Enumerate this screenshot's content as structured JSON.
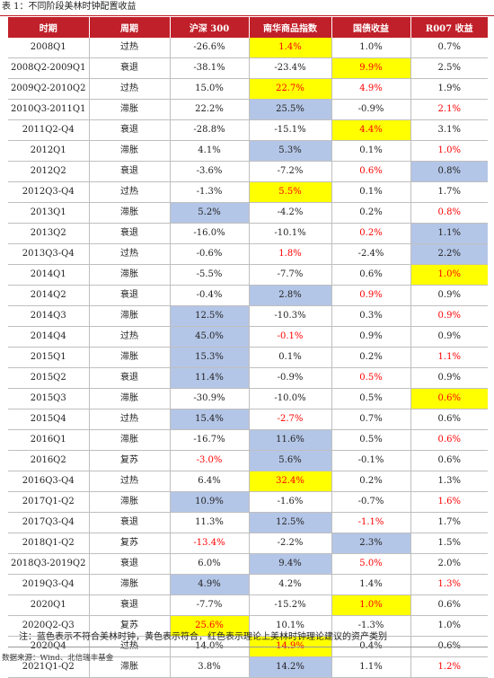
{
  "caption": "表 1：不同阶段美林时钟配置收益",
  "columns": [
    "时期",
    "周期",
    "沪深 300",
    "南华商品指数",
    "国债收益",
    "R007 收益"
  ],
  "rows": [
    {
      "period": "2008Q1",
      "cycle": "过热",
      "hs300": "-26.6%",
      "nanhua": "1.4%",
      "bond": "1.0%",
      "r007": "0.7%",
      "styles": [
        "",
        "yellow-red",
        "",
        ""
      ]
    },
    {
      "period": "2008Q2-2009Q1",
      "cycle": "衰退",
      "hs300": "-38.1%",
      "nanhua": "-23.4%",
      "bond": "9.9%",
      "r007": "2.5%",
      "styles": [
        "",
        "",
        "yellow-red",
        ""
      ]
    },
    {
      "period": "2009Q2-2010Q2",
      "cycle": "过热",
      "hs300": "15.0%",
      "nanhua": "22.7%",
      "bond": "4.9%",
      "r007": "1.9%",
      "styles": [
        "",
        "yellow-red",
        "red",
        ""
      ]
    },
    {
      "period": "2010Q3-2011Q1",
      "cycle": "滞胀",
      "hs300": "22.2%",
      "nanhua": "25.5%",
      "bond": "-0.9%",
      "r007": "2.1%",
      "styles": [
        "",
        "blue",
        "",
        "red"
      ]
    },
    {
      "period": "2011Q2-Q4",
      "cycle": "衰退",
      "hs300": "-28.8%",
      "nanhua": "-15.1%",
      "bond": "4.4%",
      "r007": "3.1%",
      "styles": [
        "",
        "",
        "yellow-red",
        ""
      ]
    },
    {
      "period": "2012Q1",
      "cycle": "滞胀",
      "hs300": "4.1%",
      "nanhua": "5.3%",
      "bond": "0.1%",
      "r007": "1.0%",
      "styles": [
        "",
        "blue",
        "",
        "red"
      ]
    },
    {
      "period": "2012Q2",
      "cycle": "衰退",
      "hs300": "-3.6%",
      "nanhua": "-7.2%",
      "bond": "0.6%",
      "r007": "0.8%",
      "styles": [
        "",
        "",
        "red",
        "blue"
      ]
    },
    {
      "period": "2012Q3-Q4",
      "cycle": "过热",
      "hs300": "-1.3%",
      "nanhua": "5.5%",
      "bond": "0.1%",
      "r007": "1.7%",
      "styles": [
        "",
        "yellow-red",
        "",
        ""
      ]
    },
    {
      "period": "2013Q1",
      "cycle": "滞胀",
      "hs300": "5.2%",
      "nanhua": "-4.2%",
      "bond": "0.2%",
      "r007": "0.8%",
      "styles": [
        "blue",
        "",
        "",
        "red"
      ]
    },
    {
      "period": "2013Q2",
      "cycle": "衰退",
      "hs300": "-16.0%",
      "nanhua": "-10.1%",
      "bond": "0.2%",
      "r007": "1.1%",
      "styles": [
        "",
        "",
        "red",
        "blue"
      ]
    },
    {
      "period": "2013Q3-Q4",
      "cycle": "过热",
      "hs300": "-0.6%",
      "nanhua": "1.8%",
      "bond": "-2.4%",
      "r007": "2.2%",
      "styles": [
        "",
        "red",
        "",
        "blue"
      ]
    },
    {
      "period": "2014Q1",
      "cycle": "滞胀",
      "hs300": "-5.5%",
      "nanhua": "-7.7%",
      "bond": "0.6%",
      "r007": "1.0%",
      "styles": [
        "",
        "",
        "",
        "yellow-red"
      ]
    },
    {
      "period": "2014Q2",
      "cycle": "衰退",
      "hs300": "-0.4%",
      "nanhua": "2.8%",
      "bond": "0.9%",
      "r007": "0.9%",
      "styles": [
        "",
        "blue",
        "red",
        ""
      ]
    },
    {
      "period": "2014Q3",
      "cycle": "滞胀",
      "hs300": "12.5%",
      "nanhua": "-10.3%",
      "bond": "0.3%",
      "r007": "0.9%",
      "styles": [
        "blue",
        "",
        "",
        "red"
      ]
    },
    {
      "period": "2014Q4",
      "cycle": "过热",
      "hs300": "45.0%",
      "nanhua": "-0.1%",
      "bond": "0.9%",
      "r007": "0.9%",
      "styles": [
        "blue",
        "red",
        "",
        ""
      ]
    },
    {
      "period": "2015Q1",
      "cycle": "滞胀",
      "hs300": "15.3%",
      "nanhua": "0.1%",
      "bond": "0.2%",
      "r007": "1.1%",
      "styles": [
        "blue",
        "",
        "",
        "red"
      ]
    },
    {
      "period": "2015Q2",
      "cycle": "衰退",
      "hs300": "11.4%",
      "nanhua": "-0.9%",
      "bond": "0.5%",
      "r007": "0.9%",
      "styles": [
        "blue",
        "",
        "red",
        ""
      ]
    },
    {
      "period": "2015Q3",
      "cycle": "滞胀",
      "hs300": "-30.9%",
      "nanhua": "-10.0%",
      "bond": "0.5%",
      "r007": "0.6%",
      "styles": [
        "",
        "",
        "",
        "yellow-red"
      ]
    },
    {
      "period": "2015Q4",
      "cycle": "过热",
      "hs300": "15.4%",
      "nanhua": "-2.7%",
      "bond": "0.7%",
      "r007": "0.6%",
      "styles": [
        "blue",
        "red",
        "",
        ""
      ]
    },
    {
      "period": "2016Q1",
      "cycle": "滞胀",
      "hs300": "-16.7%",
      "nanhua": "11.6%",
      "bond": "0.5%",
      "r007": "0.6%",
      "styles": [
        "",
        "blue",
        "",
        "red"
      ]
    },
    {
      "period": "2016Q2",
      "cycle": "复苏",
      "hs300": "-3.0%",
      "nanhua": "5.6%",
      "bond": "-0.1%",
      "r007": "0.6%",
      "styles": [
        "red",
        "blue",
        "",
        ""
      ]
    },
    {
      "period": "2016Q3-Q4",
      "cycle": "过热",
      "hs300": "6.4%",
      "nanhua": "32.4%",
      "bond": "0.2%",
      "r007": "1.3%",
      "styles": [
        "",
        "yellow-red",
        "",
        ""
      ]
    },
    {
      "period": "2017Q1-Q2",
      "cycle": "滞胀",
      "hs300": "10.9%",
      "nanhua": "-1.6%",
      "bond": "-0.7%",
      "r007": "1.6%",
      "styles": [
        "blue",
        "",
        "",
        "red"
      ]
    },
    {
      "period": "2017Q3-Q4",
      "cycle": "衰退",
      "hs300": "11.3%",
      "nanhua": "12.5%",
      "bond": "-1.1%",
      "r007": "1.7%",
      "styles": [
        "",
        "blue",
        "red",
        ""
      ]
    },
    {
      "period": "2018Q1-Q2",
      "cycle": "复苏",
      "hs300": "-13.4%",
      "nanhua": "-2.2%",
      "bond": "2.3%",
      "r007": "1.5%",
      "styles": [
        "red",
        "",
        "blue",
        ""
      ]
    },
    {
      "period": "2018Q3-2019Q2",
      "cycle": "衰退",
      "hs300": "6.0%",
      "nanhua": "9.4%",
      "bond": "5.0%",
      "r007": "2.0%",
      "styles": [
        "",
        "blue",
        "red",
        ""
      ]
    },
    {
      "period": "2019Q3-Q4",
      "cycle": "滞胀",
      "hs300": "4.9%",
      "nanhua": "4.2%",
      "bond": "1.4%",
      "r007": "1.3%",
      "styles": [
        "blue",
        "",
        "",
        "red"
      ]
    },
    {
      "period": "2020Q1",
      "cycle": "衰退",
      "hs300": "-7.7%",
      "nanhua": "-15.2%",
      "bond": "1.0%",
      "r007": "0.6%",
      "styles": [
        "",
        "",
        "yellow-red",
        ""
      ]
    },
    {
      "period": "2020Q2-Q3",
      "cycle": "复苏",
      "hs300": "25.6%",
      "nanhua": "10.1%",
      "bond": "-1.3%",
      "r007": "1.0%",
      "styles": [
        "yellow-red",
        "",
        "",
        ""
      ]
    },
    {
      "period": "2020Q4",
      "cycle": "过热",
      "hs300": "14.0%",
      "nanhua": "14.9%",
      "bond": "0.4%",
      "r007": "0.6%",
      "styles": [
        "",
        "yellow-red",
        "",
        ""
      ]
    },
    {
      "period": "2021Q1-Q2",
      "cycle": "滞胀",
      "hs300": "3.8%",
      "nanhua": "14.2%",
      "bond": "1.1%",
      "r007": "1.2%",
      "styles": [
        "",
        "blue",
        "",
        "red"
      ]
    }
  ],
  "note": "注：蓝色表示不符合美林时钟，黄色表示符合，红色表示理论上美林时钟理论建议的资产类别",
  "source": "数据来源：Wind、北信瑞丰基金",
  "colors": {
    "header_bg": "#c0202a",
    "blue_highlight": "#b4c6e7",
    "yellow_highlight": "#ffff00",
    "red_text": "#ff0000"
  }
}
